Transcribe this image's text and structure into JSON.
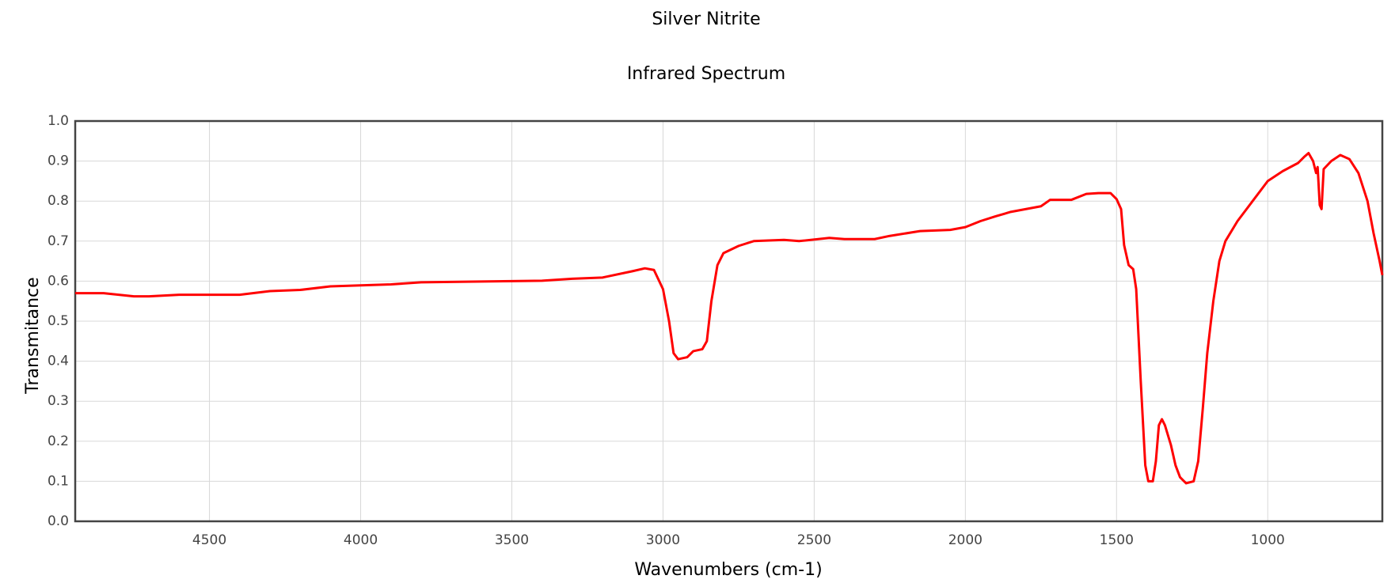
{
  "chart_data": {
    "type": "line",
    "title": "Silver Nitrite",
    "subtitle": "Infrared Spectrum",
    "x_label": "Wavenumbers (cm-1)",
    "y_label": "Transmitance",
    "xlim": [
      4944,
      621
    ],
    "ylim": [
      0,
      1
    ],
    "xticks": [
      4500,
      4000,
      3500,
      3000,
      2500,
      2000,
      1500,
      1000
    ],
    "yticks": [
      {
        "value": 0,
        "label": "0.0"
      },
      0.1,
      0.2,
      0.3,
      0.4,
      0.5,
      0.6,
      0.7,
      0.8,
      0.9,
      {
        "value": 1,
        "label": "1.0"
      }
    ],
    "grid": true,
    "x": [
      4944,
      4850,
      4750,
      4700,
      4600,
      4400,
      4300,
      4200,
      4100,
      3900,
      3800,
      3500,
      3400,
      3300,
      3200,
      3100,
      3060,
      3030,
      3000,
      2980,
      2965,
      2950,
      2920,
      2900,
      2870,
      2855,
      2840,
      2820,
      2800,
      2750,
      2700,
      2600,
      2550,
      2450,
      2400,
      2300,
      2250,
      2150,
      2050,
      2000,
      1950,
      1900,
      1850,
      1750,
      1720,
      1650,
      1600,
      1560,
      1520,
      1500,
      1485,
      1475,
      1460,
      1445,
      1435,
      1420,
      1405,
      1395,
      1380,
      1370,
      1360,
      1350,
      1340,
      1320,
      1305,
      1290,
      1270,
      1245,
      1230,
      1215,
      1200,
      1180,
      1160,
      1140,
      1100,
      1050,
      1000,
      950,
      900,
      880,
      865,
      850,
      840,
      835,
      828,
      822,
      815,
      790,
      760,
      730,
      700,
      670,
      650,
      630,
      621
    ],
    "series": [
      {
        "name": "Silver Nitrite",
        "color": "#ff0000",
        "values": [
          0.57,
          0.57,
          0.562,
          0.562,
          0.566,
          0.566,
          0.575,
          0.578,
          0.587,
          0.592,
          0.597,
          0.6,
          0.601,
          0.606,
          0.609,
          0.625,
          0.632,
          0.628,
          0.58,
          0.5,
          0.42,
          0.405,
          0.41,
          0.425,
          0.43,
          0.45,
          0.55,
          0.64,
          0.67,
          0.688,
          0.7,
          0.703,
          0.7,
          0.708,
          0.705,
          0.705,
          0.713,
          0.725,
          0.728,
          0.735,
          0.75,
          0.762,
          0.773,
          0.787,
          0.803,
          0.803,
          0.818,
          0.82,
          0.82,
          0.805,
          0.78,
          0.69,
          0.64,
          0.63,
          0.58,
          0.35,
          0.14,
          0.1,
          0.1,
          0.15,
          0.24,
          0.255,
          0.24,
          0.19,
          0.14,
          0.11,
          0.095,
          0.1,
          0.15,
          0.28,
          0.42,
          0.55,
          0.65,
          0.7,
          0.75,
          0.8,
          0.85,
          0.875,
          0.895,
          0.91,
          0.92,
          0.9,
          0.87,
          0.885,
          0.79,
          0.78,
          0.88,
          0.9,
          0.915,
          0.905,
          0.87,
          0.8,
          0.72,
          0.65,
          0.615
        ]
      }
    ]
  }
}
